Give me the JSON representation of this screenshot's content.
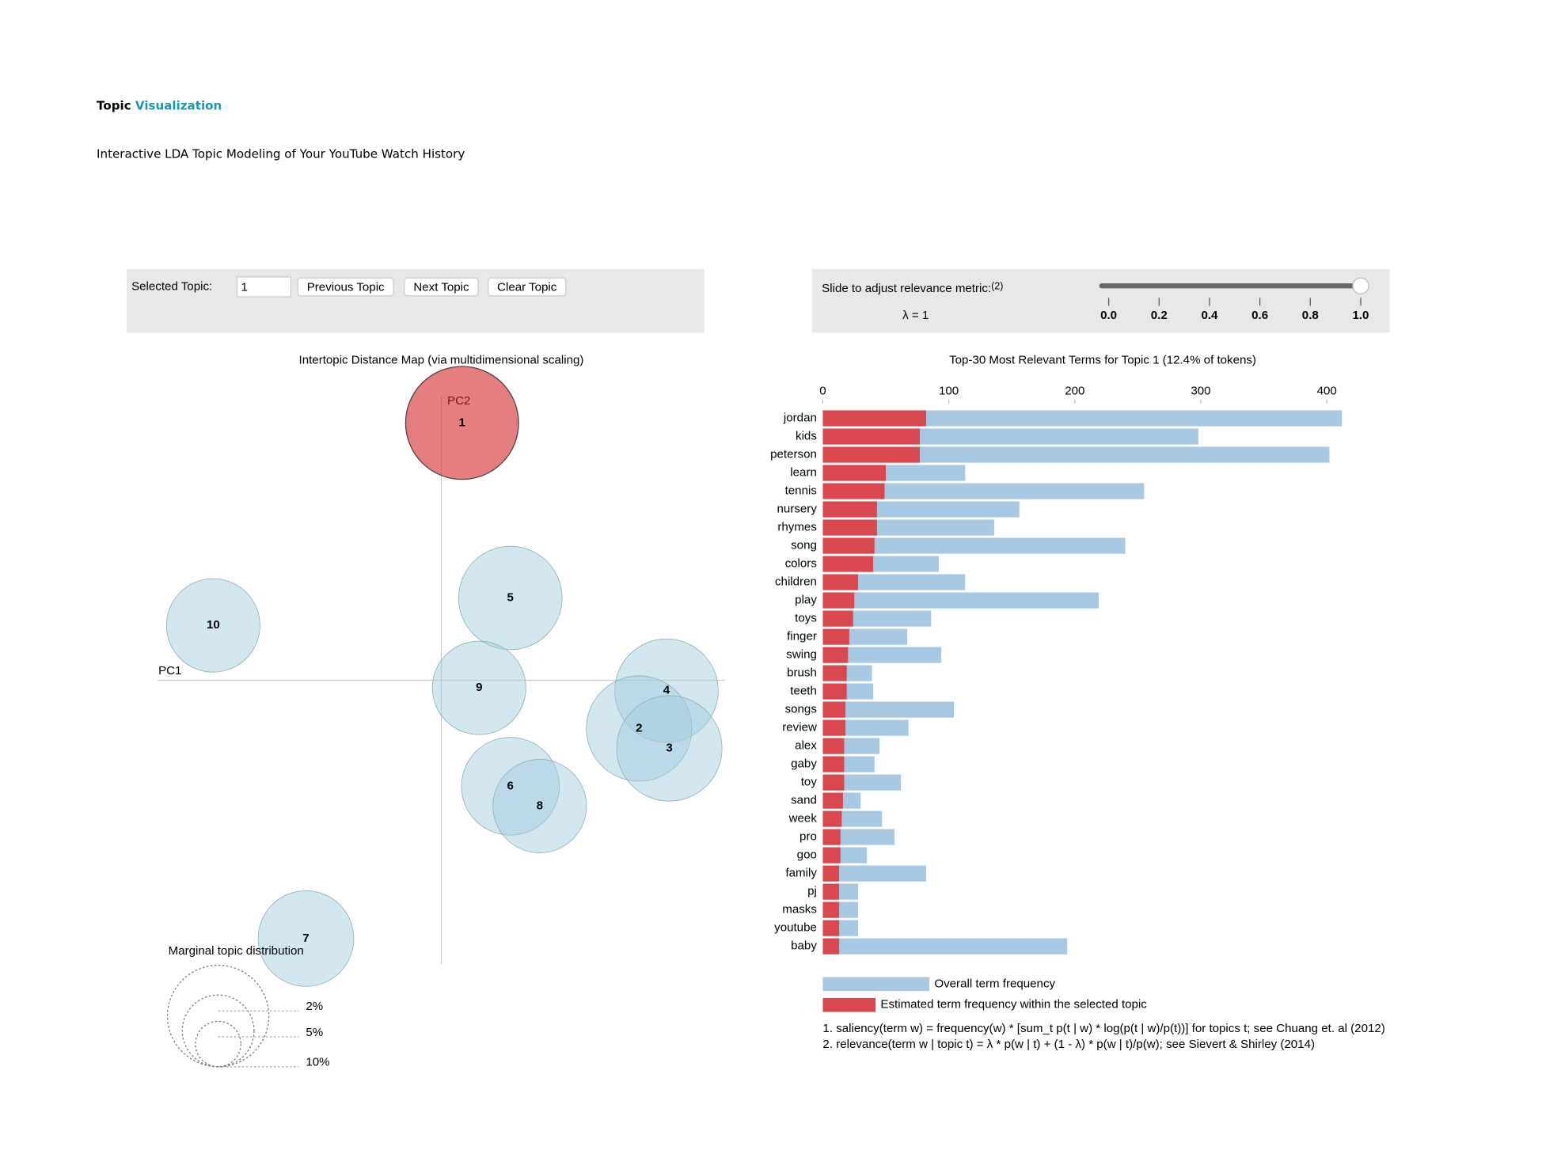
{
  "header": {
    "title_1": "Topic",
    "title_2": "Visualization",
    "subtitle": "Interactive LDA Topic Modeling of Your YouTube Watch History"
  },
  "controls": {
    "selected_label": "Selected Topic:",
    "selected_value": "1",
    "buttons": [
      "Previous Topic",
      "Next Topic",
      "Clear Topic"
    ],
    "slider_label": "Slide to adjust relevance metric:",
    "slider_note": "(2)",
    "lambda_label": "λ = 1",
    "slider_value": 1,
    "slider_lim": [
      0,
      1
    ],
    "slider_ticks": [
      {
        "value": 0,
        "label": "0.0"
      },
      {
        "value": 0.2,
        "label": "0.2"
      },
      {
        "value": 0.4,
        "label": "0.4"
      },
      {
        "value": 0.6,
        "label": "0.6"
      },
      {
        "value": 0.8,
        "label": "0.8"
      },
      {
        "value": 1,
        "label": "1.0"
      }
    ]
  },
  "chart_data": [
    {
      "type": "scatter",
      "title": "Intertopic Distance Map (via multidimensional scaling)",
      "x_label": "PC1",
      "y_label": "PC2",
      "xlim": [
        -0.3,
        0.3
      ],
      "ylim": [
        -0.3,
        0.3
      ],
      "labels": [
        "1",
        "5",
        "10",
        "9",
        "4",
        "2",
        "3",
        "6",
        "8",
        "7"
      ],
      "x": [
        0.022,
        0.073,
        -0.241,
        0.04,
        0.238,
        0.209,
        0.241,
        0.073,
        0.104,
        -0.143
      ],
      "y": [
        0.272,
        0.087,
        0.058,
        -0.008,
        -0.011,
        -0.051,
        -0.072,
        -0.112,
        -0.133,
        -0.273
      ],
      "sizes": [
        12.4,
        10.4,
        8.5,
        8.5,
        10.4,
        10.8,
        10.8,
        9.3,
        8.5,
        8.9
      ],
      "colors": [
        "#d62728",
        "#9ecae1",
        "#9ecae1",
        "#9ecae1",
        "#9ecae1",
        "#9ecae1",
        "#9ecae1",
        "#9ecae1",
        "#9ecae1",
        "#9ecae1"
      ],
      "size_legend": {
        "title": "Marginal topic distribution",
        "values": [
          2,
          5,
          10
        ],
        "labels": [
          "2%",
          "5%",
          "10%"
        ]
      }
    },
    {
      "type": "bar",
      "orientation": "horizontal",
      "title": "Top-30 Most Relevant Terms for Topic 1 (12.4% of tokens)",
      "categories": [
        "jordan",
        "kids",
        "peterson",
        "learn",
        "tennis",
        "nursery",
        "rhymes",
        "song",
        "colors",
        "children",
        "play",
        "toys",
        "finger",
        "swing",
        "brush",
        "teeth",
        "songs",
        "review",
        "alex",
        "gaby",
        "toy",
        "sand",
        "week",
        "pro",
        "goo",
        "family",
        "pj",
        "masks",
        "youtube",
        "baby"
      ],
      "series": [
        {
          "name": "Overall term frequency",
          "color": "#a6c8e3",
          "values": [
            412,
            298,
            402,
            113,
            255,
            156,
            136,
            240,
            92,
            113,
            219,
            86,
            67,
            94,
            39,
            40,
            104,
            68,
            45,
            41,
            62,
            30,
            47,
            57,
            35,
            82,
            28,
            28,
            28,
            194
          ]
        },
        {
          "name": "Estimated term frequency within the selected topic",
          "color": "#d9474f",
          "values": [
            82,
            77,
            77,
            50,
            49,
            43,
            43,
            41,
            40,
            28,
            25,
            24,
            21,
            20,
            19,
            19,
            18,
            18,
            17,
            17,
            17,
            16,
            15,
            14,
            14,
            13,
            13,
            13,
            13,
            13
          ]
        }
      ],
      "xlim": [
        0,
        420
      ],
      "xticks": [
        0,
        100,
        200,
        300,
        400
      ],
      "footnotes": [
        "1. saliency(term w) = frequency(w) * [sum_t p(t | w) * log(p(t | w)/p(t))] for topics t; see Chuang et. al (2012)",
        "2. relevance(term w | topic t) = λ * p(w | t) + (1 - λ) * p(w | t)/p(w); see Sievert & Shirley (2014)"
      ]
    }
  ]
}
